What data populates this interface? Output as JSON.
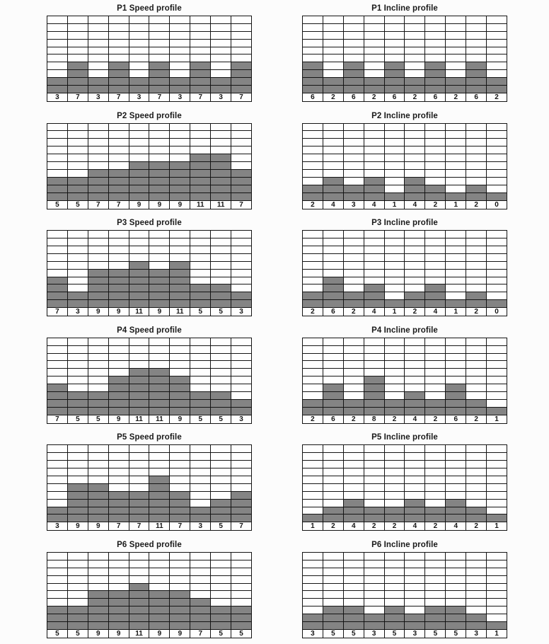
{
  "page": {
    "background": "#fcfcfc"
  },
  "colors": {
    "bar_fill": "#848484",
    "grid_line": "#141414",
    "cell_background": "#fefefe",
    "text": "#1a1a1a"
  },
  "chart_layout": {
    "grid_cols": 10,
    "grid_rows": 10,
    "value_label_row": "bottom",
    "units_per_row": 2,
    "bar_rule": "filled_rows = floor(value / 2) + 1",
    "grid": true,
    "legend": false
  },
  "chart_data": [
    {
      "type": "bar",
      "title": "P1 Speed profile",
      "values": [
        3,
        7,
        3,
        7,
        3,
        7,
        3,
        7,
        3,
        7
      ]
    },
    {
      "type": "bar",
      "title": "P1 Incline profile",
      "values": [
        6,
        2,
        6,
        2,
        6,
        2,
        6,
        2,
        6,
        2
      ]
    },
    {
      "type": "bar",
      "title": "P2 Speed profile",
      "values": [
        5,
        5,
        7,
        7,
        9,
        9,
        9,
        11,
        11,
        7
      ]
    },
    {
      "type": "bar",
      "title": "P2 Incline profile",
      "values": [
        2,
        4,
        3,
        4,
        1,
        4,
        2,
        1,
        2,
        0
      ]
    },
    {
      "type": "bar",
      "title": "P3 Speed profile",
      "values": [
        7,
        3,
        9,
        9,
        11,
        9,
        11,
        5,
        5,
        3
      ]
    },
    {
      "type": "bar",
      "title": "P3 Incline profile",
      "values": [
        2,
        6,
        2,
        4,
        1,
        2,
        4,
        1,
        2,
        0
      ]
    },
    {
      "type": "bar",
      "title": "P4 Speed profile",
      "values": [
        7,
        5,
        5,
        9,
        11,
        11,
        9,
        5,
        5,
        3
      ]
    },
    {
      "type": "bar",
      "title": "P4 Incline profile",
      "values": [
        2,
        6,
        2,
        8,
        2,
        4,
        2,
        6,
        2,
        1
      ]
    },
    {
      "type": "bar",
      "title": "P5 Speed profile",
      "values": [
        3,
        9,
        9,
        7,
        7,
        11,
        7,
        3,
        5,
        7
      ]
    },
    {
      "type": "bar",
      "title": "P5 Incline profile",
      "values": [
        1,
        2,
        4,
        2,
        2,
        4,
        2,
        4,
        2,
        1
      ]
    },
    {
      "type": "bar",
      "title": "P6 Speed profile",
      "values": [
        5,
        5,
        9,
        9,
        11,
        9,
        9,
        7,
        5,
        5
      ]
    },
    {
      "type": "bar",
      "title": "P6 Incline profile",
      "values": [
        3,
        5,
        5,
        3,
        5,
        3,
        5,
        5,
        3,
        1
      ]
    }
  ]
}
